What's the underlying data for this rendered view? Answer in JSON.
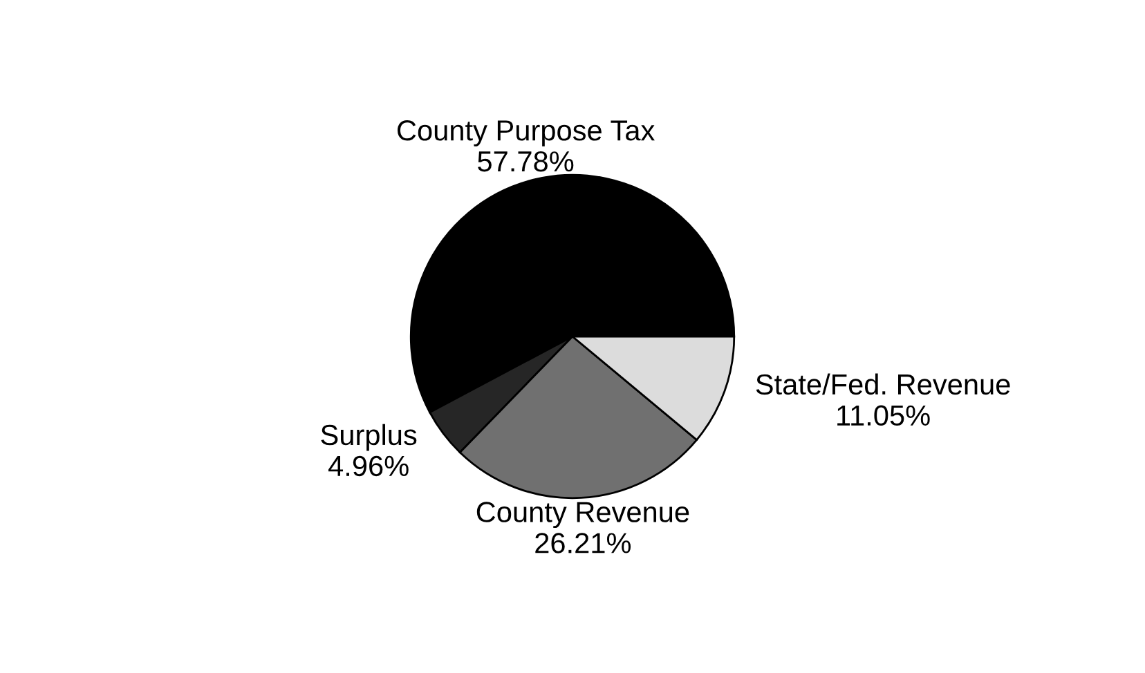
{
  "chart_data": {
    "type": "pie",
    "categories": [
      "County Purpose Tax",
      "Surplus",
      "County Revenue",
      "State/Fed. Revenue"
    ],
    "values": [
      57.78,
      4.96,
      26.21,
      11.05
    ],
    "value_labels": [
      "57.78%",
      "4.96%",
      "26.21%",
      "11.05%"
    ],
    "colors": [
      "#000000",
      "#262626",
      "#707070",
      "#dcdcdc"
    ]
  }
}
